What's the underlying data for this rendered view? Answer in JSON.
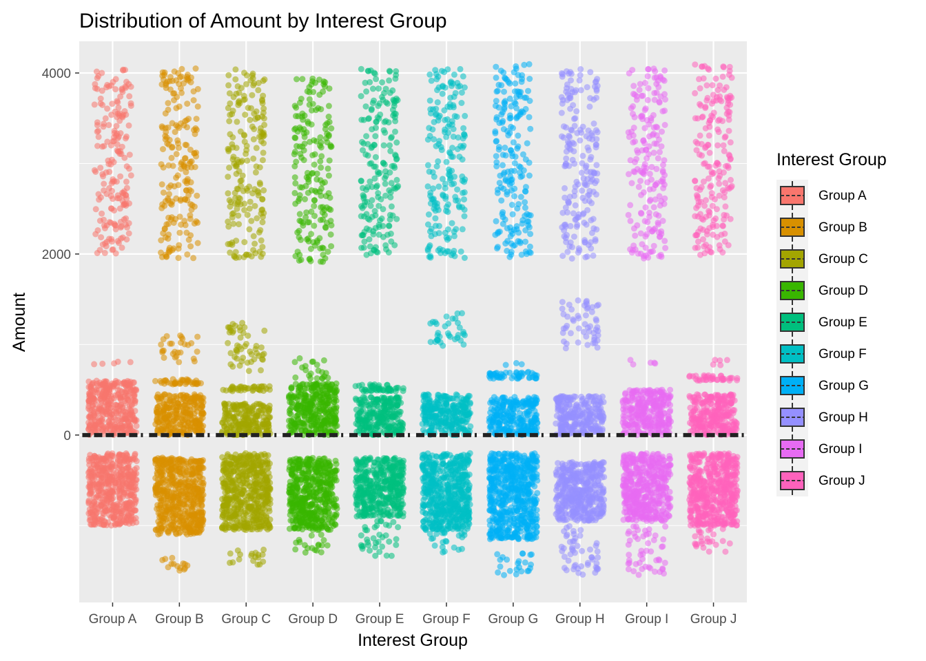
{
  "chart_data": {
    "type": "scatter",
    "subtype": "jittered strip plot with boxplots",
    "title": "Distribution of Amount by Interest Group",
    "xlabel": "Interest Group",
    "ylabel": "Amount",
    "ylim": [
      -1850,
      4350
    ],
    "y_ticks": [
      0,
      2000,
      4000
    ],
    "y_tick_labels": [
      "0",
      "2000",
      "4000"
    ],
    "grid": true,
    "legend": {
      "title": "Interest Group",
      "position": "right"
    },
    "categories": [
      "Group A",
      "Group B",
      "Group C",
      "Group D",
      "Group E",
      "Group F",
      "Group G",
      "Group H",
      "Group I",
      "Group J"
    ],
    "colors": [
      "#F8766D",
      "#D89000",
      "#A3A500",
      "#39B600",
      "#00BF7D",
      "#00BFC4",
      "#00B0F6",
      "#9590FF",
      "#E76BF3",
      "#FF62BC"
    ],
    "median": [
      0,
      0,
      0,
      0,
      0,
      0,
      0,
      0,
      0,
      0
    ],
    "series": [
      {
        "name": "Group A",
        "dense_bands": [
          [
            -1000,
            -200
          ],
          [
            0,
            600
          ]
        ],
        "outlier_bands": [
          [
            2000,
            2600
          ],
          [
            2600,
            3200
          ],
          [
            3200,
            4050
          ],
          [
            780,
            830
          ]
        ]
      },
      {
        "name": "Group B",
        "dense_bands": [
          [
            -1100,
            -250
          ],
          [
            0,
            450
          ],
          [
            560,
            620
          ]
        ],
        "outlier_bands": [
          [
            1950,
            2600
          ],
          [
            2600,
            3200
          ],
          [
            3200,
            4050
          ],
          [
            800,
            1100
          ],
          [
            -1500,
            -1350
          ]
        ]
      },
      {
        "name": "Group C",
        "dense_bands": [
          [
            -1050,
            -200
          ],
          [
            0,
            350
          ],
          [
            480,
            540
          ]
        ],
        "outlier_bands": [
          [
            1950,
            2600
          ],
          [
            2600,
            3200
          ],
          [
            3200,
            4050
          ],
          [
            700,
            1250
          ],
          [
            -1450,
            -1250
          ]
        ]
      },
      {
        "name": "Group D",
        "dense_bands": [
          [
            -1050,
            -250
          ],
          [
            0,
            570
          ]
        ],
        "outlier_bands": [
          [
            1900,
            2600
          ],
          [
            2600,
            3200
          ],
          [
            3200,
            3950
          ],
          [
            620,
            850
          ],
          [
            -1300,
            -1100
          ]
        ]
      },
      {
        "name": "Group E",
        "dense_bands": [
          [
            -900,
            -250
          ],
          [
            0,
            420
          ],
          [
            480,
            560
          ]
        ],
        "outlier_bands": [
          [
            1950,
            2600
          ],
          [
            2600,
            3200
          ],
          [
            3200,
            4050
          ],
          [
            -1350,
            -950
          ]
        ]
      },
      {
        "name": "Group F",
        "dense_bands": [
          [
            -1050,
            -200
          ],
          [
            0,
            450
          ]
        ],
        "outlier_bands": [
          [
            1950,
            2600
          ],
          [
            2600,
            3200
          ],
          [
            3200,
            4050
          ],
          [
            980,
            1350
          ],
          [
            -1300,
            -1000
          ]
        ]
      },
      {
        "name": "Group G",
        "dense_bands": [
          [
            -1150,
            -200
          ],
          [
            0,
            420
          ],
          [
            620,
            700
          ]
        ],
        "outlier_bands": [
          [
            1950,
            2600
          ],
          [
            2600,
            3200
          ],
          [
            3200,
            4100
          ],
          [
            770,
            800
          ],
          [
            -1550,
            -1300
          ]
        ]
      },
      {
        "name": "Group H",
        "dense_bands": [
          [
            -950,
            -300
          ],
          [
            0,
            430
          ]
        ],
        "outlier_bands": [
          [
            1950,
            2600
          ],
          [
            2600,
            3200
          ],
          [
            3200,
            4050
          ],
          [
            950,
            1520
          ],
          [
            -1550,
            -1000
          ]
        ]
      },
      {
        "name": "Group I",
        "dense_bands": [
          [
            -950,
            -200
          ],
          [
            0,
            500
          ]
        ],
        "outlier_bands": [
          [
            1950,
            2600
          ],
          [
            2600,
            3200
          ],
          [
            3200,
            4050
          ],
          [
            780,
            830
          ],
          [
            -1550,
            -1000
          ]
        ]
      },
      {
        "name": "Group J",
        "dense_bands": [
          [
            -1000,
            -200
          ],
          [
            0,
            450
          ],
          [
            600,
            660
          ]
        ],
        "outlier_bands": [
          [
            1950,
            2600
          ],
          [
            2600,
            3200
          ],
          [
            3200,
            4100
          ],
          [
            770,
            830
          ],
          [
            -1300,
            -1000
          ]
        ]
      }
    ]
  }
}
